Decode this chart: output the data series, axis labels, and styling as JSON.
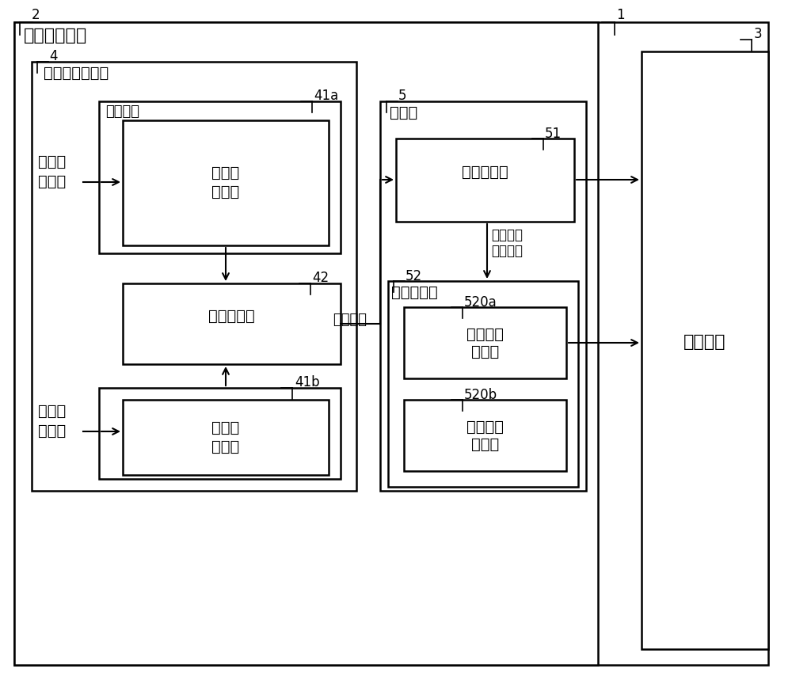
{
  "bg_color": "#ffffff",
  "line_color": "#000000",
  "font_color": "#000000",
  "label_1": "1",
  "label_2": "2",
  "label_3": "3",
  "label_4": "4",
  "label_5": "5",
  "label_41a": "41a",
  "label_41b": "41b",
  "label_42": "42",
  "label_51": "51",
  "label_52": "52",
  "label_520a": "520a",
  "label_520b": "520b",
  "text_display_ctrl": "显示控制装置",
  "text_img_output": "图像数据输出部",
  "text_mux": "复用电路",
  "text_buf1_l1": "第一行",
  "text_buf1_l2": "缓冲器",
  "text_tcon": "时序控制器",
  "text_buf2_l1": "第二行",
  "text_buf2_l2": "缓冲器",
  "text_img1_l1": "第一图",
  "text_img1_l2": "像数据",
  "text_img2_l1": "第二图",
  "text_img2_l2": "像数据",
  "text_drive": "驱动部",
  "text_source": "源极驱动器",
  "text_gate_drv": "栀极驱动器",
  "text_reg1_l1": "第一移位",
  "text_reg1_l2": "寄存器",
  "text_reg2_l1": "第二移位",
  "text_reg2_l2": "寄存器",
  "text_lcd": "液晶面板",
  "text_img_out_arrow": "图像输出",
  "text_gate_ctrl_l1": "栀极驱动",
  "text_gate_ctrl_l2": "控制信号"
}
